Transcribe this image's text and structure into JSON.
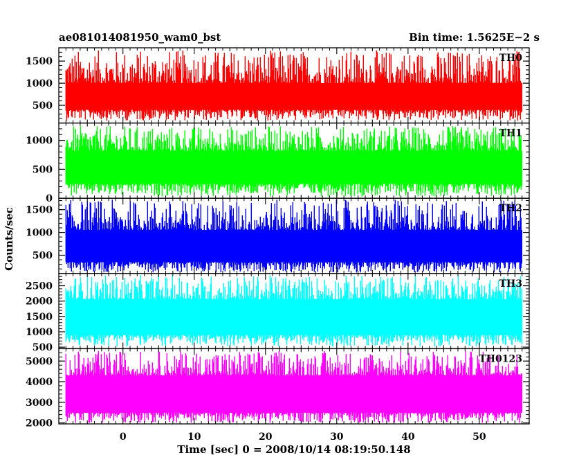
{
  "header": {
    "left": "ae081014081950_wam0_bst",
    "right": "Bin time: 1.5625E−2 s"
  },
  "chart_data": {
    "type": "line",
    "title": "ae081014081950_wam0_bst",
    "bin_time": "Bin time: 1.5625E−2 s",
    "xlabel": "Time [sec] 0 = 2008/10/14 08:19:50.148",
    "ylabel": "Counts/sec",
    "xlim": [
      -9,
      57
    ],
    "x_ticks": [
      0,
      10,
      20,
      30,
      40,
      50
    ],
    "x_range_data": [
      -8,
      56
    ],
    "grid": false,
    "panels": [
      {
        "name": "TH0",
        "color": "#ff0000",
        "ylim": [
          100,
          1800
        ],
        "y_ticks": [
          500,
          1000,
          1500
        ],
        "band": [
          400,
          1000
        ],
        "spike_max": 1750,
        "dip_min": 150
      },
      {
        "name": "TH1",
        "color": "#00ff00",
        "ylim": [
          0,
          1300
        ],
        "y_ticks": [
          0,
          500,
          1000
        ],
        "band": [
          250,
          820
        ],
        "spike_max": 1250,
        "dip_min": 30
      },
      {
        "name": "TH2",
        "color": "#0000ff",
        "ylim": [
          100,
          1750
        ],
        "y_ticks": [
          500,
          1000,
          1500
        ],
        "band": [
          350,
          1050
        ],
        "spike_max": 1720,
        "dip_min": 120
      },
      {
        "name": "TH3",
        "color": "#00ffff",
        "ylim": [
          450,
          2900
        ],
        "y_ticks": [
          500,
          1000,
          1500,
          2000,
          2500
        ],
        "band": [
          900,
          2050
        ],
        "spike_max": 2850,
        "dip_min": 520
      },
      {
        "name": "TH0123",
        "color": "#ff00ff",
        "ylim": [
          1950,
          5600
        ],
        "y_ticks": [
          2000,
          3000,
          4000,
          5000
        ],
        "band": [
          2500,
          4300
        ],
        "spike_max": 5500,
        "dip_min": 2000
      }
    ]
  }
}
